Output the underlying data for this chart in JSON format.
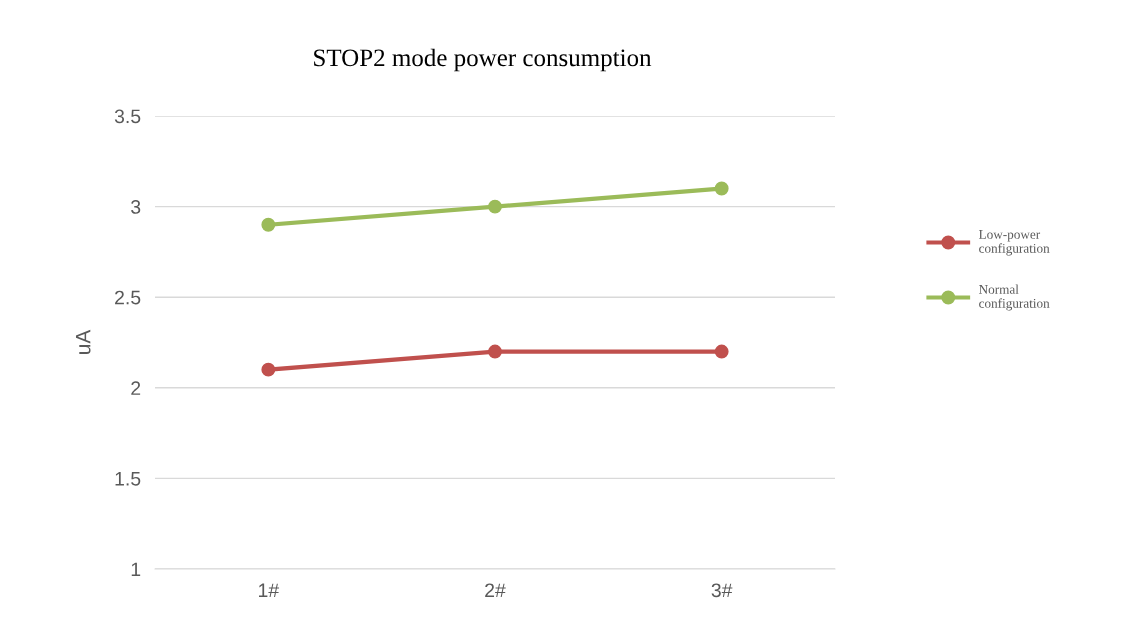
{
  "chart_data": {
    "type": "line",
    "title": "STOP2 mode power consumption",
    "ylabel": "uA",
    "categories": [
      "1#",
      "2#",
      "3#"
    ],
    "series": [
      {
        "name": "Low-power configuration",
        "color": "#c0504d",
        "values": [
          2.1,
          2.2,
          2.2
        ]
      },
      {
        "name": "Normal configuration",
        "color": "#9bbb59",
        "values": [
          2.9,
          3.0,
          3.1
        ]
      }
    ],
    "ylim": [
      1,
      3.5
    ],
    "yticks": [
      1,
      1.5,
      2,
      2.5,
      3,
      3.5
    ],
    "grid": "y",
    "legend": "right",
    "marker": "circle",
    "line_style": "solid"
  }
}
